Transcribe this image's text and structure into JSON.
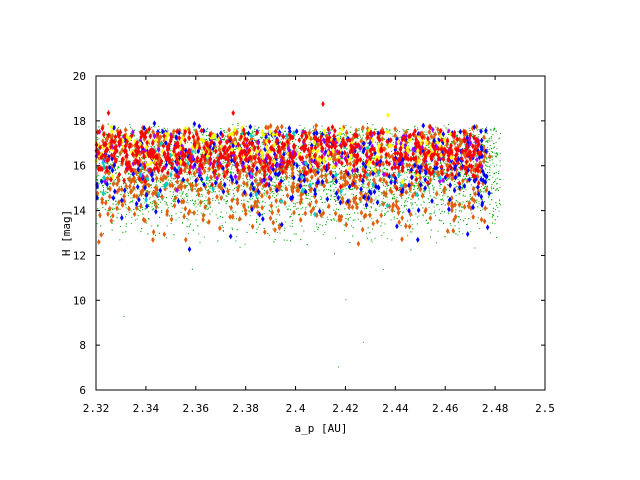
{
  "chart_data": {
    "type": "scatter",
    "title": "",
    "xlabel": "a_p [AU]",
    "ylabel": "H [mag]",
    "xlim": [
      2.32,
      2.5
    ],
    "ylim": [
      6,
      20
    ],
    "xticks": [
      "2.32",
      "2.34",
      "2.36",
      "2.38",
      "2.4",
      "2.42",
      "2.44",
      "2.46",
      "2.48",
      "2.5"
    ],
    "yticks": [
      "6",
      "8",
      "10",
      "12",
      "14",
      "16",
      "18",
      "20"
    ],
    "grid": false,
    "legend": "none",
    "description_of_points": "dense cloud of asteroids: x from 2.32 to ~2.48 AU, H mostly 13-18 mag",
    "series": [
      {
        "color": "#00aa00",
        "marker": "dot",
        "count": 6000,
        "x_range": [
          2.32,
          2.482
        ],
        "y_center": 15.8,
        "y_spread": 1.3
      },
      {
        "color": "#e06010",
        "marker": "diamond",
        "count": 900,
        "x_range": [
          2.32,
          2.478
        ],
        "y_center": 15.7,
        "y_spread": 1.2
      },
      {
        "color": "#ff0000",
        "marker": "diamond",
        "count": 600,
        "x_range": [
          2.32,
          2.475
        ],
        "y_center": 16.6,
        "y_spread": 0.6
      },
      {
        "color": "#0000ff",
        "marker": "diamond",
        "count": 350,
        "x_range": [
          2.32,
          2.478
        ],
        "y_center": 16.0,
        "y_spread": 1.1
      },
      {
        "color": "#ffff00",
        "marker": "diamond",
        "count": 200,
        "x_range": [
          2.32,
          2.47
        ],
        "y_center": 16.8,
        "y_spread": 0.5
      },
      {
        "color": "#a000ff",
        "marker": "diamond",
        "count": 150,
        "x_range": [
          2.32,
          2.475
        ],
        "y_center": 16.6,
        "y_spread": 0.6
      },
      {
        "color": "#00cccc",
        "marker": "diamond",
        "count": 60,
        "x_range": [
          2.32,
          2.46
        ],
        "y_center": 15.8,
        "y_spread": 0.8
      }
    ],
    "outliers": [
      {
        "x": 2.411,
        "y": 18.75,
        "color": "#ff0000"
      },
      {
        "x": 2.325,
        "y": 18.35,
        "color": "#ff0000"
      },
      {
        "x": 2.375,
        "y": 18.35,
        "color": "#ff0000"
      },
      {
        "x": 2.437,
        "y": 18.25,
        "color": "#ffff00"
      },
      {
        "x": 2.331,
        "y": 9.3,
        "color": "#00aa00"
      },
      {
        "x": 2.42,
        "y": 10.05,
        "color": "#00aa00"
      },
      {
        "x": 2.417,
        "y": 7.05,
        "color": "#00aa00"
      },
      {
        "x": 2.427,
        "y": 8.15,
        "color": "#00aa00"
      },
      {
        "x": 2.435,
        "y": 11.4,
        "color": "#00aa00"
      },
      {
        "x": 2.374,
        "y": 12.85,
        "color": "#0000ff"
      },
      {
        "x": 2.356,
        "y": 12.7,
        "color": "#e06010"
      },
      {
        "x": 2.469,
        "y": 12.95,
        "color": "#0000ff"
      },
      {
        "x": 2.477,
        "y": 13.25,
        "color": "#0000ff"
      },
      {
        "x": 2.449,
        "y": 12.7,
        "color": "#0000ff"
      }
    ]
  }
}
